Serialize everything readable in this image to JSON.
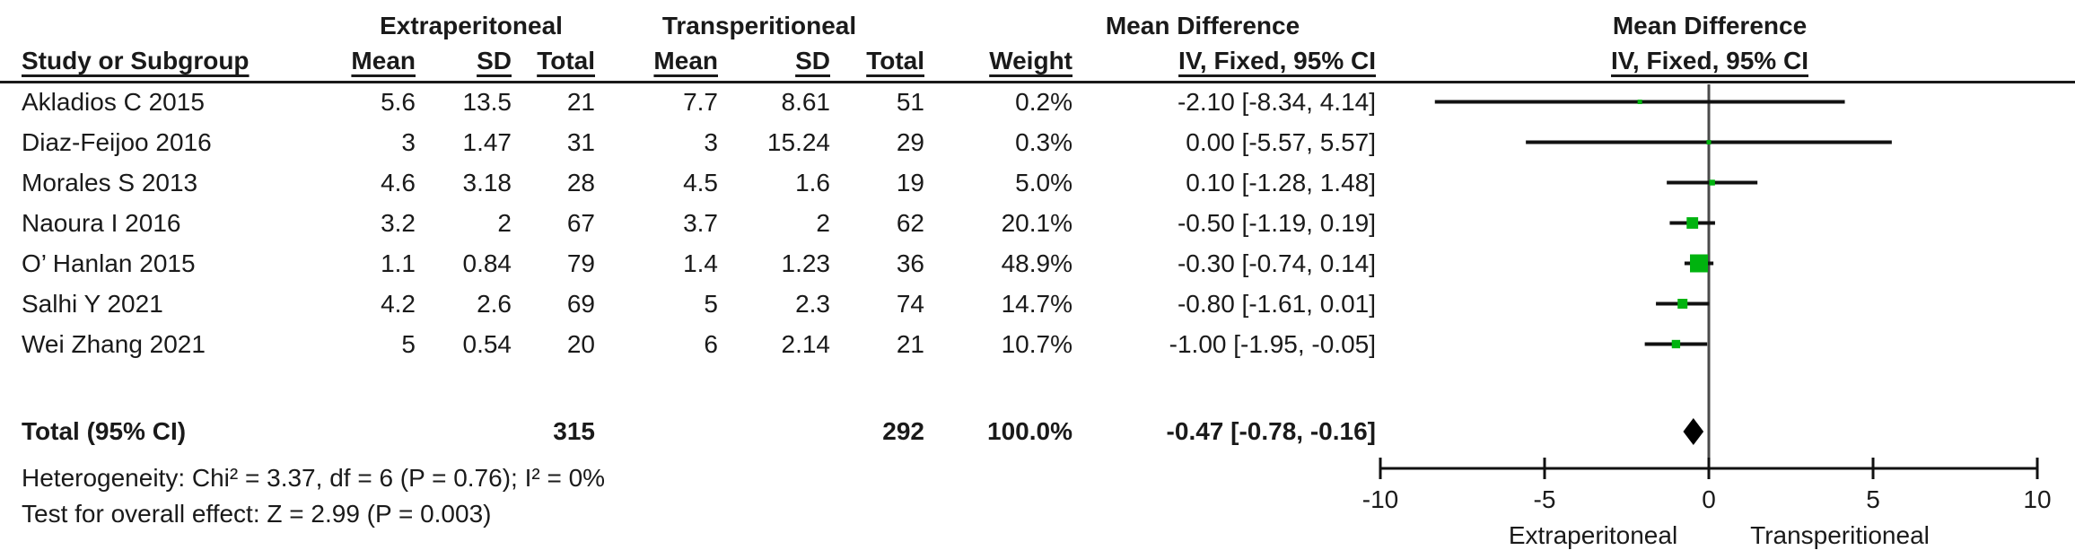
{
  "group_headers": {
    "extraperitoneal": "Extraperitoneal",
    "transperitoneal": "Transperitioneal",
    "mean_difference_left": "Mean Difference",
    "mean_difference_right": "Mean Difference",
    "method_right": "IV, Fixed, 95% CI"
  },
  "columns": [
    "Study or Subgroup",
    "Mean",
    "SD",
    "Total",
    "Mean",
    "SD",
    "Total",
    "Weight",
    "IV, Fixed, 95% CI"
  ],
  "studies": [
    {
      "name": "Akladios C 2015",
      "e_mean": "5.6",
      "e_sd": "13.5",
      "e_total": "21",
      "t_mean": "7.7",
      "t_sd": "8.61",
      "t_total": "51",
      "weight": "0.2%",
      "ci_text": "-2.10 [-8.34, 4.14]",
      "md": -2.1,
      "lo": -8.34,
      "hi": 4.14,
      "weight_value": 0.2
    },
    {
      "name": "Diaz-Feijoo 2016",
      "e_mean": "3",
      "e_sd": "1.47",
      "e_total": "31",
      "t_mean": "3",
      "t_sd": "15.24",
      "t_total": "29",
      "weight": "0.3%",
      "ci_text": "0.00 [-5.57, 5.57]",
      "md": 0.0,
      "lo": -5.57,
      "hi": 5.57,
      "weight_value": 0.3
    },
    {
      "name": "Morales S 2013",
      "e_mean": "4.6",
      "e_sd": "3.18",
      "e_total": "28",
      "t_mean": "4.5",
      "t_sd": "1.6",
      "t_total": "19",
      "weight": "5.0%",
      "ci_text": "0.10 [-1.28, 1.48]",
      "md": 0.1,
      "lo": -1.28,
      "hi": 1.48,
      "weight_value": 5.0
    },
    {
      "name": "Naoura I 2016",
      "e_mean": "3.2",
      "e_sd": "2",
      "e_total": "67",
      "t_mean": "3.7",
      "t_sd": "2",
      "t_total": "62",
      "weight": "20.1%",
      "ci_text": "-0.50 [-1.19, 0.19]",
      "md": -0.5,
      "lo": -1.19,
      "hi": 0.19,
      "weight_value": 20.1
    },
    {
      "name": "O’ Hanlan 2015",
      "e_mean": "1.1",
      "e_sd": "0.84",
      "e_total": "79",
      "t_mean": "1.4",
      "t_sd": "1.23",
      "t_total": "36",
      "weight": "48.9%",
      "ci_text": "-0.30 [-0.74, 0.14]",
      "md": -0.3,
      "lo": -0.74,
      "hi": 0.14,
      "weight_value": 48.9
    },
    {
      "name": "Salhi Y 2021",
      "e_mean": "4.2",
      "e_sd": "2.6",
      "e_total": "69",
      "t_mean": "5",
      "t_sd": "2.3",
      "t_total": "74",
      "weight": "14.7%",
      "ci_text": "-0.80 [-1.61, 0.01]",
      "md": -0.8,
      "lo": -1.61,
      "hi": 0.01,
      "weight_value": 14.7
    },
    {
      "name": "Wei Zhang 2021",
      "e_mean": "5",
      "e_sd": "0.54",
      "e_total": "20",
      "t_mean": "6",
      "t_sd": "2.14",
      "t_total": "21",
      "weight": "10.7%",
      "ci_text": "-1.00 [-1.95, -0.05]",
      "md": -1.0,
      "lo": -1.95,
      "hi": -0.05,
      "weight_value": 10.7
    }
  ],
  "total_row": {
    "label": "Total (95% CI)",
    "e_total": "315",
    "t_total": "292",
    "weight": "100.0%",
    "ci_text": "-0.47 [-0.78, -0.16]",
    "md": -0.47,
    "lo": -0.78,
    "hi": -0.16
  },
  "footer": {
    "heterogeneity": "Heterogeneity: Chi² = 3.37, df = 6 (P = 0.76); I² = 0%",
    "overall_effect": "Test for overall effect: Z = 2.99 (P = 0.003)"
  },
  "axis": {
    "min": -10,
    "max": 10,
    "ticks": [
      "-10",
      "-5",
      "0",
      "5",
      "10"
    ],
    "tick_values": [
      -10,
      -5,
      0,
      5,
      10
    ],
    "favours_left": "Extraperitoneal",
    "favours_right": "Transperitioneal"
  },
  "colors": {
    "square_green": "#00b30f",
    "diamond": "#000000",
    "ci_line": "#111111",
    "zero_line": "#4a4a4a",
    "axis": "#111111"
  },
  "chart_data": {
    "type": "scatter",
    "subtype": "forest-plot-mean-difference",
    "title": "Mean Difference, IV, Fixed, 95% CI",
    "x_axis": {
      "label_left": "Extraperitoneal",
      "label_right": "Transperitioneal",
      "range": [
        -10,
        10
      ],
      "ticks": [
        -10,
        -5,
        0,
        5,
        10
      ]
    },
    "series": [
      {
        "name": "Akladios C 2015",
        "md": -2.1,
        "ci": [
          -8.34,
          4.14
        ],
        "weight_pct": 0.2
      },
      {
        "name": "Diaz-Feijoo 2016",
        "md": 0.0,
        "ci": [
          -5.57,
          5.57
        ],
        "weight_pct": 0.3
      },
      {
        "name": "Morales S 2013",
        "md": 0.1,
        "ci": [
          -1.28,
          1.48
        ],
        "weight_pct": 5.0
      },
      {
        "name": "Naoura I 2016",
        "md": -0.5,
        "ci": [
          -1.19,
          0.19
        ],
        "weight_pct": 20.1
      },
      {
        "name": "O’ Hanlan 2015",
        "md": -0.3,
        "ci": [
          -0.74,
          0.14
        ],
        "weight_pct": 48.9
      },
      {
        "name": "Salhi Y 2021",
        "md": -0.8,
        "ci": [
          -1.61,
          0.01
        ],
        "weight_pct": 14.7
      },
      {
        "name": "Wei Zhang 2021",
        "md": -1.0,
        "ci": [
          -1.95,
          -0.05
        ],
        "weight_pct": 10.7
      }
    ],
    "summary": {
      "name": "Total (95% CI)",
      "md": -0.47,
      "ci": [
        -0.78,
        -0.16
      ],
      "weight_pct": 100.0
    },
    "heterogeneity": {
      "chi2": 3.37,
      "df": 6,
      "p": 0.76,
      "i2_pct": 0
    },
    "overall_effect": {
      "z": 2.99,
      "p": 0.003
    }
  }
}
